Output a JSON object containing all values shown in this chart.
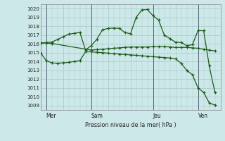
{
  "bg_color": "#cde8e8",
  "grid_color": "#a8c8c8",
  "line_color": "#1a5c1a",
  "ylim": [
    1008.5,
    1020.5
  ],
  "xlim": [
    0,
    32
  ],
  "xlabel": "Pression niveau de la mer( hPa )",
  "day_labels": [
    "Mer",
    "Sam",
    "Jeu",
    "Ven"
  ],
  "day_positions": [
    1,
    9,
    20,
    28
  ],
  "vline_color": "#556677",
  "line1_x": [
    0,
    1,
    2,
    9,
    10,
    11,
    12,
    13,
    14,
    15,
    16,
    17,
    18,
    19,
    20,
    21,
    22,
    23,
    24,
    25,
    26,
    27,
    28,
    29,
    30,
    31
  ],
  "line1_y": [
    1016.1,
    1016.1,
    1016.05,
    1015.3,
    1015.35,
    1015.4,
    1015.45,
    1015.5,
    1015.55,
    1015.6,
    1015.65,
    1015.65,
    1015.65,
    1015.65,
    1015.7,
    1015.7,
    1015.7,
    1015.65,
    1015.6,
    1015.6,
    1015.6,
    1015.55,
    1015.5,
    1015.4,
    1015.3,
    1015.2
  ],
  "line2_x": [
    0,
    1,
    2,
    3,
    4,
    5,
    6,
    7,
    8,
    9,
    10,
    11,
    12,
    13,
    14,
    15,
    16,
    17,
    18,
    19,
    20,
    21,
    22,
    23,
    24,
    25,
    26,
    27,
    28,
    29,
    30,
    31
  ],
  "line2_y": [
    1016.1,
    1016.15,
    1016.2,
    1016.5,
    1016.8,
    1017.1,
    1017.2,
    1017.3,
    1015.3,
    1015.8,
    1016.5,
    1017.6,
    1017.75,
    1017.8,
    1017.75,
    1017.3,
    1017.15,
    1019.0,
    1019.85,
    1019.9,
    1019.2,
    1018.7,
    1017.0,
    1016.6,
    1016.2,
    1016.15,
    1015.8,
    1015.9,
    1017.5,
    1017.5,
    1013.5,
    1010.5
  ],
  "line3_x": [
    0,
    1,
    2,
    3,
    4,
    5,
    6,
    7,
    8,
    9,
    10,
    11,
    12,
    13,
    14,
    15,
    16,
    17,
    18,
    19,
    20,
    21,
    22,
    23,
    24,
    25,
    26,
    27,
    28,
    29,
    30,
    31
  ],
  "line3_y": [
    1015.0,
    1014.1,
    1013.85,
    1013.8,
    1013.85,
    1013.9,
    1014.0,
    1014.1,
    1015.1,
    1015.1,
    1015.05,
    1015.0,
    1014.95,
    1014.9,
    1014.85,
    1014.8,
    1014.75,
    1014.7,
    1014.65,
    1014.6,
    1014.55,
    1014.5,
    1014.45,
    1014.4,
    1014.3,
    1013.8,
    1013.0,
    1012.5,
    1011.0,
    1010.5,
    1009.3,
    1009.05
  ]
}
